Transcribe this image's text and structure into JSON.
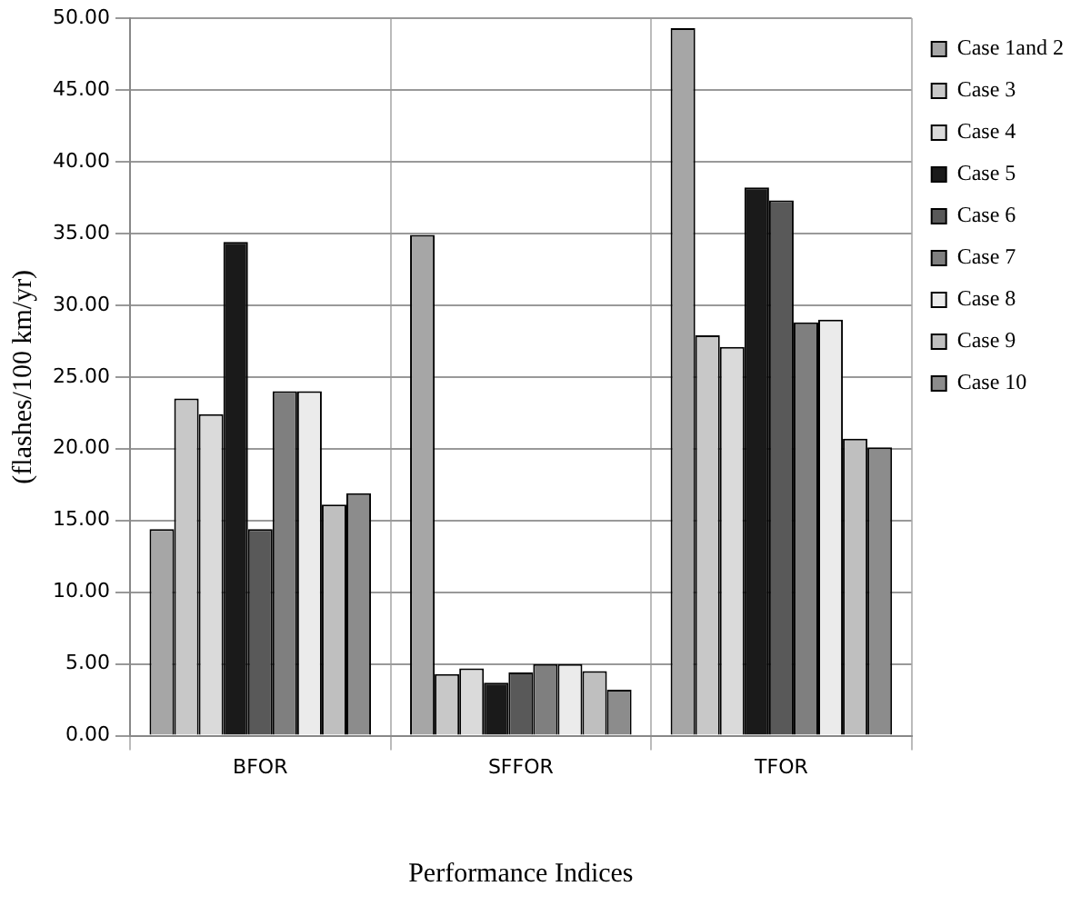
{
  "chart_data": {
    "type": "bar",
    "xlabel": "Performance Indices",
    "ylabel": "(flashes/100 km/yr)",
    "categories": [
      "BFOR",
      "SFFOR",
      "TFOR"
    ],
    "series": [
      {
        "name": "Case 1and 2",
        "color": "#a6a6a6",
        "values": [
          14.4,
          34.9,
          49.3
        ]
      },
      {
        "name": "Case 3",
        "color": "#c8c8c8",
        "values": [
          23.5,
          4.3,
          27.9
        ]
      },
      {
        "name": "Case 4",
        "color": "#dadada",
        "values": [
          22.4,
          4.7,
          27.1
        ]
      },
      {
        "name": "Case 5",
        "color": "#1a1a1a",
        "values": [
          34.4,
          3.7,
          38.2
        ]
      },
      {
        "name": "Case 6",
        "color": "#595959",
        "values": [
          14.4,
          4.4,
          37.3
        ]
      },
      {
        "name": "Case 7",
        "color": "#7f7f7f",
        "values": [
          24.0,
          5.0,
          28.8
        ]
      },
      {
        "name": "Case 8",
        "color": "#ebebeb",
        "values": [
          24.0,
          5.0,
          29.0
        ]
      },
      {
        "name": "Case 9",
        "color": "#bfbfbf",
        "values": [
          16.1,
          4.5,
          20.7
        ]
      },
      {
        "name": "Case 10",
        "color": "#8c8c8c",
        "values": [
          16.9,
          3.2,
          20.1
        ]
      }
    ],
    "ylim": [
      0,
      50
    ],
    "yticks": [
      {
        "value": 0,
        "label": "0.00"
      },
      {
        "value": 5,
        "label": "5.00"
      },
      {
        "value": 10,
        "label": "10.00"
      },
      {
        "value": 15,
        "label": "15.00"
      },
      {
        "value": 20,
        "label": "20.00"
      },
      {
        "value": 25,
        "label": "25.00"
      },
      {
        "value": 30,
        "label": "30.00"
      },
      {
        "value": 35,
        "label": "35.00"
      },
      {
        "value": 40,
        "label": "40.00"
      },
      {
        "value": 45,
        "label": "45.00"
      },
      {
        "value": 50,
        "label": "50.00"
      }
    ],
    "grid": true,
    "legend": "right"
  }
}
